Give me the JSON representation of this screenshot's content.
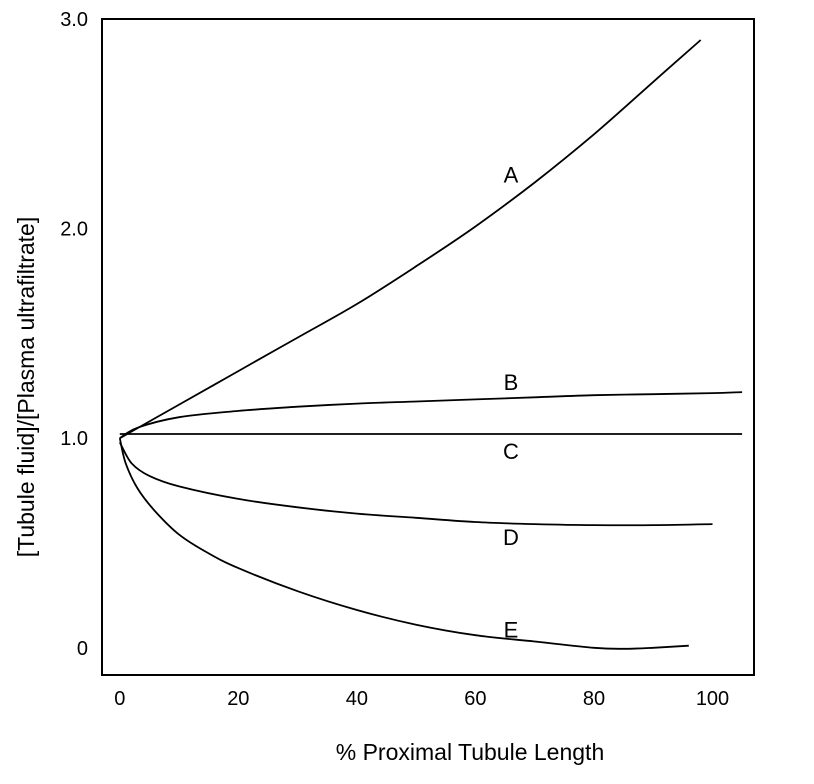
{
  "chart_data": {
    "type": "line",
    "xlabel": "% Proximal Tubule Length",
    "ylabel": "[Tubule fluid]/[Plasma ultrafiltrate]",
    "xlim": [
      -3,
      107
    ],
    "ylim": [
      -0.13,
      3.0
    ],
    "x_ticks": [
      0,
      20,
      40,
      60,
      80,
      100
    ],
    "y_ticks": [
      0,
      1.0,
      2.0,
      3.0
    ],
    "y_tick_labels": [
      "0",
      "1.0",
      "2.0",
      "3.0"
    ],
    "grid": false,
    "legend": "none",
    "series": [
      {
        "name": "A",
        "x": [
          0,
          10,
          20,
          30,
          40,
          50,
          60,
          70,
          80,
          90,
          98
        ],
        "y": [
          1.0,
          1.16,
          1.32,
          1.48,
          1.64,
          1.82,
          2.01,
          2.22,
          2.45,
          2.7,
          2.9
        ]
      },
      {
        "name": "B",
        "x": [
          0,
          3,
          10,
          20,
          30,
          40,
          50,
          60,
          70,
          80,
          90,
          100,
          105
        ],
        "y": [
          1.0,
          1.05,
          1.1,
          1.13,
          1.15,
          1.165,
          1.175,
          1.185,
          1.195,
          1.205,
          1.21,
          1.215,
          1.22
        ]
      },
      {
        "name": "C",
        "x": [
          0,
          105
        ],
        "y": [
          1.02,
          1.02
        ]
      },
      {
        "name": "D",
        "x": [
          0,
          2,
          5,
          10,
          20,
          30,
          40,
          50,
          60,
          70,
          80,
          90,
          100
        ],
        "y": [
          0.98,
          0.88,
          0.82,
          0.77,
          0.71,
          0.67,
          0.64,
          0.62,
          0.6,
          0.59,
          0.585,
          0.585,
          0.59
        ]
      },
      {
        "name": "E",
        "x": [
          0,
          1,
          3,
          6,
          10,
          15,
          20,
          30,
          40,
          50,
          60,
          70,
          80,
          85,
          90,
          96
        ],
        "y": [
          1.0,
          0.88,
          0.76,
          0.65,
          0.54,
          0.45,
          0.38,
          0.27,
          0.18,
          0.11,
          0.06,
          0.03,
          0.0,
          -0.005,
          0.0,
          0.01
        ]
      }
    ],
    "curve_labels": [
      {
        "text": "A",
        "x": 66,
        "y": 2.22
      },
      {
        "text": "B",
        "x": 66,
        "y": 1.23
      },
      {
        "text": "C",
        "x": 66,
        "y": 0.9
      },
      {
        "text": "D",
        "x": 66,
        "y": 0.49
      },
      {
        "text": "E",
        "x": 66,
        "y": 0.05
      }
    ],
    "colors": {
      "line": "#000000",
      "background": "#ffffff"
    }
  }
}
